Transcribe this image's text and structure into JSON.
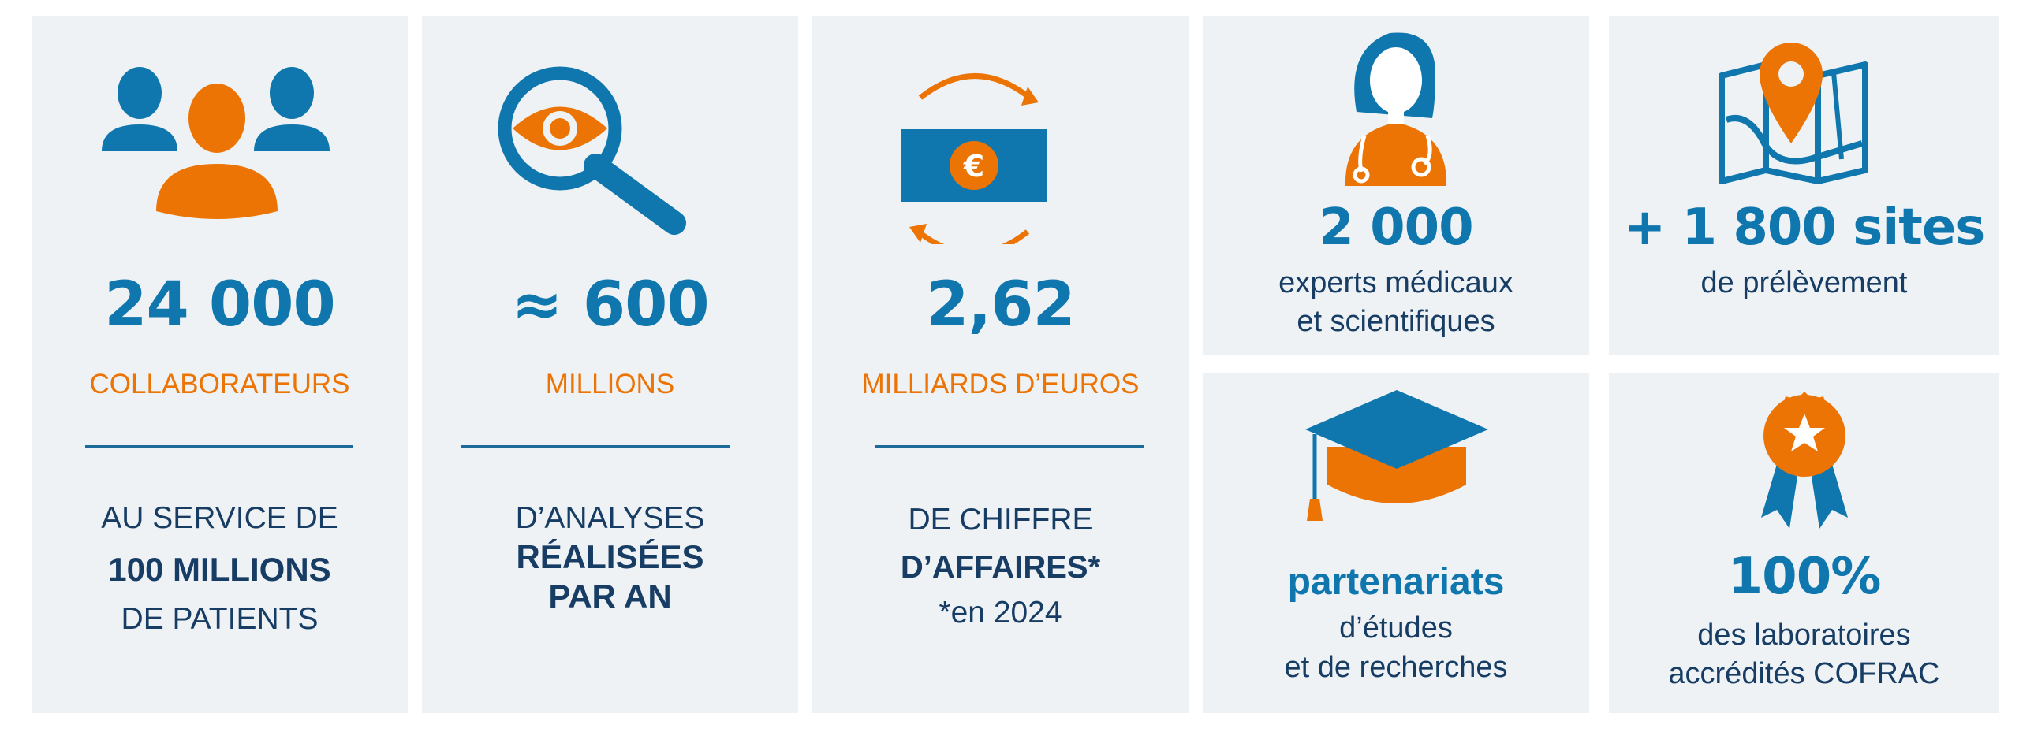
{
  "colors": {
    "blue": "#0f77ad",
    "navy": "#173d64",
    "orange": "#ec7404",
    "card_bg": "#eff2f5"
  },
  "cards": [
    {
      "icon": "people-group-icon",
      "value": "24 000",
      "label": "COLLABORATEURS",
      "lines": [
        "AU SERVICE DE",
        "100 MILLIONS",
        "DE PATIENTS"
      ]
    },
    {
      "icon": "magnifier-eye-icon",
      "value": "≈ 600",
      "label": "MILLIONS",
      "lines": [
        "D’ANALYSES",
        "RÉALISÉES",
        "PAR AN"
      ]
    },
    {
      "icon": "euro-exchange-icon",
      "value": "2,62",
      "label": "MILLIARDS D’EUROS",
      "lines": [
        "DE CHIFFRE",
        "D’AFFAIRES*",
        "*en 2024"
      ]
    },
    {
      "icon": "doctor-icon",
      "value": "2 000",
      "lines": [
        "experts médicaux",
        "et scientifiques"
      ]
    },
    {
      "icon": "map-pin-icon",
      "value": "+ 1 800 sites",
      "lines": [
        "de prélèvement"
      ]
    },
    {
      "icon": "graduation-cap-icon",
      "value": "partenariats",
      "lines": [
        "d’études",
        "et de recherches"
      ]
    },
    {
      "icon": "award-ribbon-icon",
      "value": "100%",
      "lines": [
        "des laboratoires",
        "accrédités COFRAC"
      ]
    }
  ]
}
